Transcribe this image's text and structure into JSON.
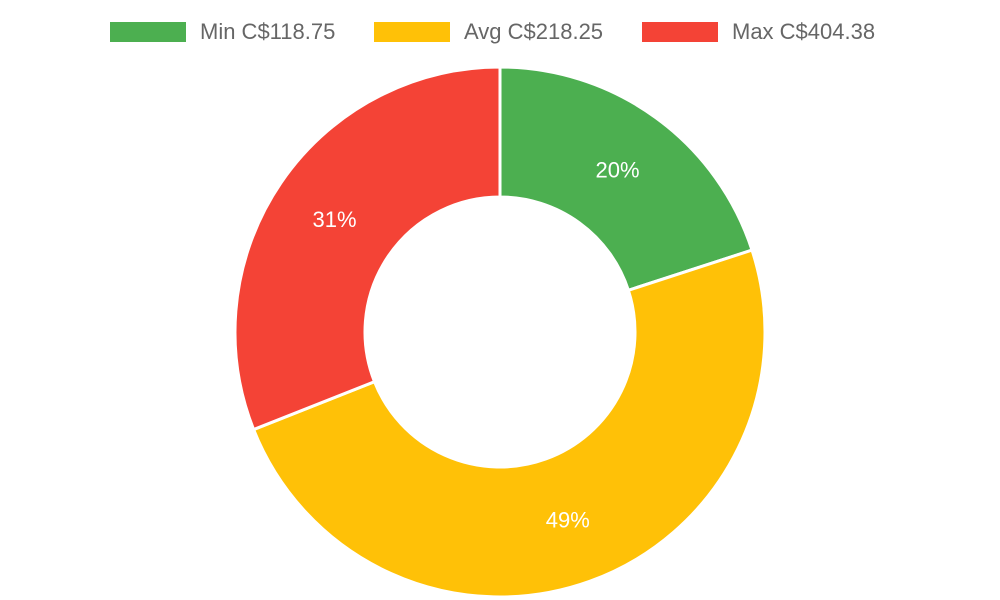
{
  "chart_data": {
    "type": "pie",
    "variant": "doughnut",
    "legend_position": "top",
    "categories": [
      "Min C$118.75",
      "Avg C$218.25",
      "Max C$404.38"
    ],
    "values": [
      20,
      49,
      31
    ],
    "value_labels": [
      "20%",
      "49%",
      "31%"
    ],
    "colors": [
      "#4caf50",
      "#ffc107",
      "#f44336"
    ]
  }
}
